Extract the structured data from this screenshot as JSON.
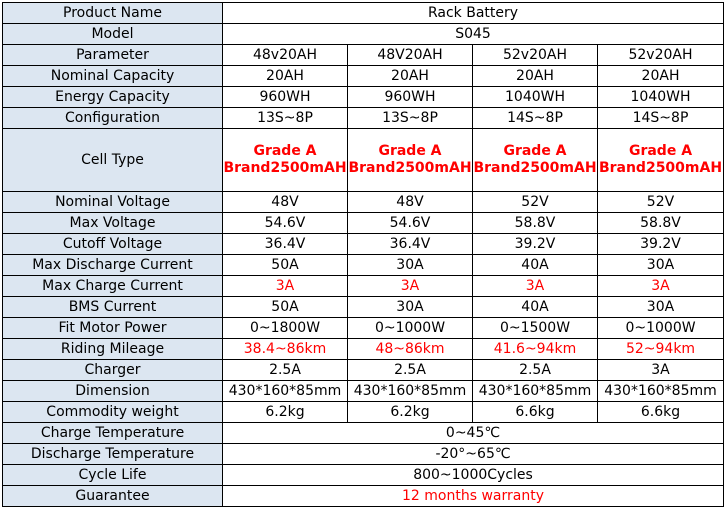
{
  "table": {
    "header": {
      "label": "Product Name",
      "value": "Rack Battery"
    },
    "model": {
      "label": "Model",
      "value": "S045"
    },
    "parameter_row": {
      "label": "Parameter",
      "values": [
        "48v20AH",
        "48V20AH",
        "52v20AH",
        "52v20AH"
      ]
    },
    "rows": [
      {
        "label": "Nominal Capacity",
        "values": [
          "20AH",
          "20AH",
          "20AH",
          "20AH"
        ]
      },
      {
        "label": "Energy Capacity",
        "values": [
          "960WH",
          "960WH",
          "1040WH",
          "1040WH"
        ]
      },
      {
        "label": "Configuration",
        "values": [
          "13S~8P",
          "13S~8P",
          "14S~8P",
          "14S~8P"
        ]
      }
    ],
    "cell_type": {
      "label": "Cell Type",
      "line1": [
        "Grade A",
        "Grade A",
        "Grade A",
        "Grade A"
      ],
      "line2": [
        "Brand2500mAH",
        "Brand2500mAH",
        "Brand2500mAH",
        "Brand2500mAH"
      ]
    },
    "rows2": [
      {
        "label": "Nominal Voltage",
        "values": [
          "48V",
          "48V",
          "52V",
          "52V"
        ]
      },
      {
        "label": "Max Voltage",
        "values": [
          "54.6V",
          "54.6V",
          "58.8V",
          "58.8V"
        ]
      },
      {
        "label": "Cutoff Voltage",
        "values": [
          "36.4V",
          "36.4V",
          "39.2V",
          "39.2V"
        ]
      },
      {
        "label": "Max Discharge Current",
        "values": [
          "50A",
          "30A",
          "40A",
          "30A"
        ]
      },
      {
        "label": "Max Charge Current",
        "values": [
          "3A",
          "3A",
          "3A",
          "3A"
        ]
      },
      {
        "label": "BMS Current",
        "values": [
          "50A",
          "30A",
          "40A",
          "30A"
        ]
      },
      {
        "label": "Fit Motor Power",
        "values": [
          "0~1800W",
          "0~1000W",
          "0~1500W",
          "0~1000W"
        ]
      },
      {
        "label": "Riding Mileage",
        "values": [
          "38.4~86km",
          "48~86km",
          "41.6~94km",
          "52~94km"
        ]
      },
      {
        "label": "Charger",
        "values": [
          "2.5A",
          "2.5A",
          "2.5A",
          "3A"
        ]
      },
      {
        "label": "Dimension",
        "values": [
          "430*160*85mm",
          "430*160*85mm",
          "430*160*85mm",
          "430*160*85mm"
        ]
      },
      {
        "label": "Commodity weight",
        "values": [
          "6.2kg",
          "6.2kg",
          "6.6kg",
          "6.6kg"
        ]
      }
    ],
    "merged_rows": [
      {
        "label": "Charge Temperature",
        "value": "0~45℃"
      },
      {
        "label": "Discharge Temperature",
        "value": "-20°~65℃"
      },
      {
        "label": "Cycle Life",
        "value": "800~1000Cycles"
      },
      {
        "label": "Guarantee",
        "value": "12 months warranty"
      }
    ]
  },
  "colors": {
    "label_background": "#dce6f1",
    "highlight_text": "#ff0000",
    "border": "#000000"
  }
}
